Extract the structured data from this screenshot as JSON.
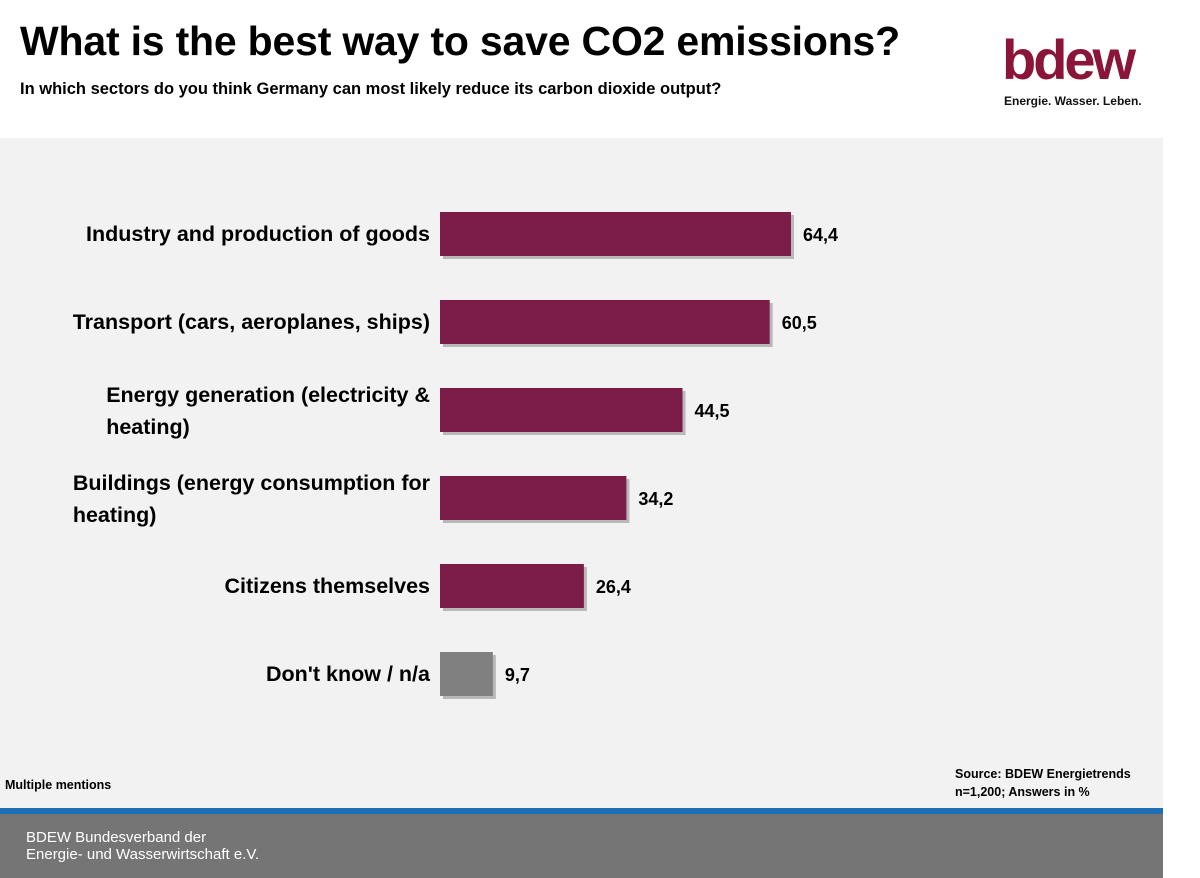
{
  "header": {
    "title": "What is the best way to save CO2 emissions?",
    "subtitle": "In which sectors do you think Germany can most likely reduce its carbon dioxide output?"
  },
  "logo": {
    "wordmark": "bdew",
    "tagline": "Energie. Wasser. Leben.",
    "color": "#8b1538"
  },
  "notes": {
    "left": "Multiple mentions",
    "source_line1": "Source: BDEW Energietrends",
    "source_line2": "n=1,200; Answers in %"
  },
  "footer": {
    "line1": "BDEW Bundesverband der",
    "line2": "Energie- und Wasserwirtschaft e.V."
  },
  "colors": {
    "primary_bar": "#7b1d48",
    "neutral_bar": "#808080",
    "footer_bg": "#757575",
    "accent_line": "#1f6fb5"
  },
  "chart_data": {
    "type": "bar",
    "orientation": "horizontal",
    "categories": [
      [
        "Industry and production of goods"
      ],
      [
        "Transport (cars, aeroplanes, ships)"
      ],
      [
        "Energy generation (electricity &",
        "heating)"
      ],
      [
        "Buildings (energy consumption for",
        "heating)"
      ],
      [
        "Citizens themselves"
      ],
      [
        "Don't know / n/a"
      ]
    ],
    "values": [
      64.4,
      60.5,
      44.5,
      34.2,
      26.4,
      9.7
    ],
    "value_labels": [
      "64,4",
      "60,5",
      "44,5",
      "34,2",
      "26,4",
      "9,7"
    ],
    "bar_colors": [
      "#7b1d48",
      "#7b1d48",
      "#7b1d48",
      "#7b1d48",
      "#7b1d48",
      "#808080"
    ],
    "unit": "%",
    "grid": false,
    "legend": false
  }
}
